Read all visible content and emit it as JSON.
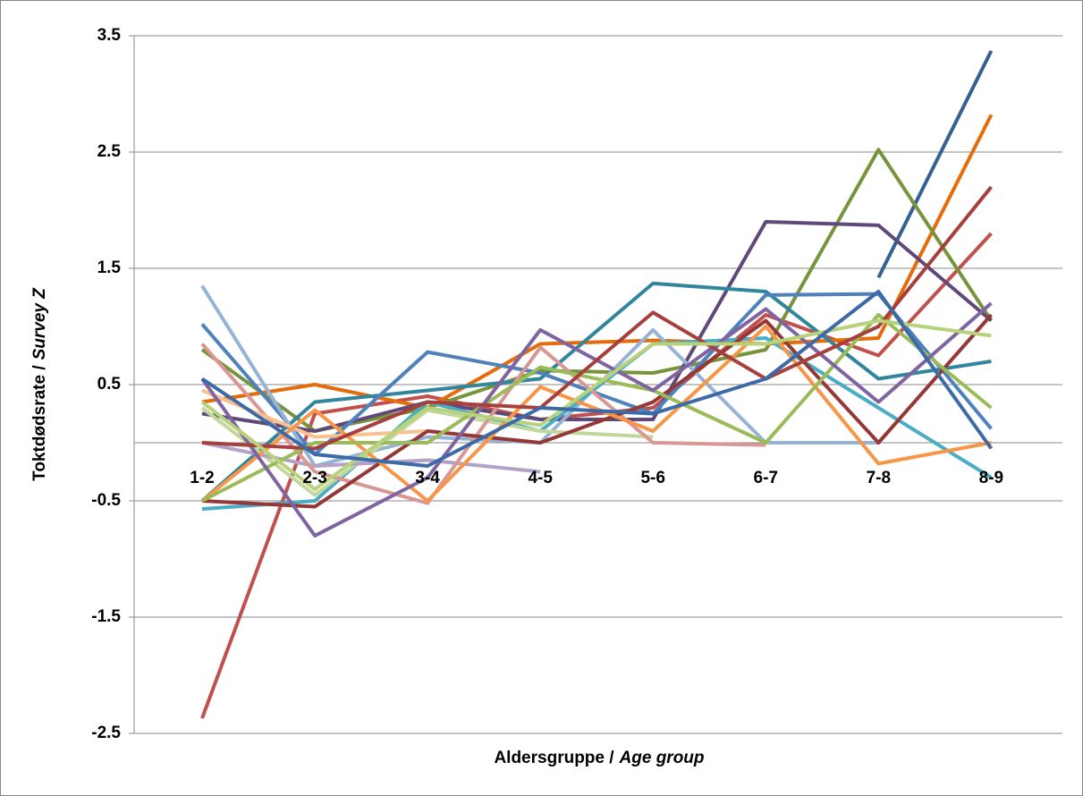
{
  "chart_data": {
    "type": "line",
    "x_label": [
      "Aldersgruppe /",
      "Age group"
    ],
    "y_label": [
      "Toktdødsrate /",
      "Survey Z"
    ],
    "categories": [
      "1-2",
      "2-3",
      "3-4",
      "4-5",
      "5-6",
      "6-7",
      "7-8",
      "8-9"
    ],
    "ylim": [
      -2.5,
      3.5
    ],
    "yticks": [
      -2.5,
      -1.5,
      -0.5,
      0.5,
      1.5,
      2.5,
      3.5
    ],
    "grid": true,
    "series": [
      {
        "color": "#c0504d",
        "values": [
          -2.37,
          0.25,
          0.4,
          0.2,
          0.3,
          1.1,
          0.75,
          1.8
        ]
      },
      {
        "color": "#376092",
        "values": [
          null,
          null,
          null,
          null,
          null,
          null,
          1.42,
          3.37
        ]
      },
      {
        "color": "#e46c0a",
        "values": [
          0.35,
          0.5,
          0.3,
          0.85,
          0.88,
          0.85,
          0.9,
          2.82
        ]
      },
      {
        "color": "#77933c",
        "values": [
          0.8,
          0.1,
          0.3,
          0.62,
          0.6,
          0.8,
          2.52,
          1.05
        ]
      },
      {
        "color": "#5f497a",
        "values": [
          0.25,
          0.1,
          0.35,
          0.2,
          0.2,
          1.9,
          1.87,
          1.05
        ]
      },
      {
        "color": "#31859c",
        "values": [
          -0.5,
          0.35,
          0.45,
          0.55,
          1.37,
          1.3,
          0.55,
          0.7
        ]
      },
      {
        "color": "#4f81bd",
        "values": [
          1.02,
          -0.1,
          0.78,
          0.6,
          0.25,
          1.27,
          1.28,
          0.12
        ]
      },
      {
        "color": "#95b3d7",
        "values": [
          1.35,
          -0.2,
          0.05,
          0.0,
          0.97,
          0.0,
          0.0,
          null
        ]
      },
      {
        "color": "#4bacc6",
        "values": [
          -0.57,
          -0.5,
          0.35,
          0.1,
          0.85,
          0.9,
          0.3,
          -0.3
        ]
      },
      {
        "color": "#c3d69b",
        "values": [
          0.3,
          -0.45,
          0.28,
          0.1,
          0.05,
          null,
          null,
          null
        ]
      },
      {
        "color": "#b3a2c7",
        "values": [
          0.0,
          -0.2,
          -0.15,
          -0.25,
          null,
          null,
          null,
          null
        ]
      },
      {
        "color": "#d99694",
        "values": [
          0.85,
          -0.25,
          -0.52,
          0.82,
          0.0,
          -0.02,
          null,
          null
        ]
      },
      {
        "color": "#fac090",
        "values": [
          0.45,
          0.05,
          0.1,
          null,
          null,
          null,
          null,
          null
        ]
      },
      {
        "color": "#953735",
        "values": [
          -0.5,
          -0.55,
          0.1,
          0.0,
          0.35,
          1.05,
          0.0,
          1.1
        ]
      },
      {
        "color": "#f79646",
        "values": [
          -0.5,
          0.28,
          -0.5,
          0.48,
          0.1,
          1.0,
          -0.18,
          0.0
        ]
      },
      {
        "color": "#9bbb59",
        "values": [
          -0.5,
          0.0,
          0.0,
          0.65,
          0.45,
          0.0,
          1.1,
          0.3
        ]
      },
      {
        "color": "#8064a2",
        "values": [
          0.55,
          -0.8,
          -0.3,
          0.97,
          0.45,
          1.15,
          0.35,
          1.2
        ]
      },
      {
        "color": "#a5403d",
        "values": [
          0.0,
          -0.05,
          0.35,
          0.3,
          1.12,
          0.55,
          1.0,
          2.2
        ]
      },
      {
        "color": "#b7d27a",
        "values": [
          0.35,
          -0.4,
          0.3,
          0.15,
          0.85,
          0.85,
          1.05,
          0.92
        ]
      },
      {
        "color": "#3b6aa6",
        "values": [
          0.55,
          -0.1,
          -0.2,
          0.3,
          0.25,
          0.55,
          1.3,
          -0.05
        ]
      }
    ]
  }
}
